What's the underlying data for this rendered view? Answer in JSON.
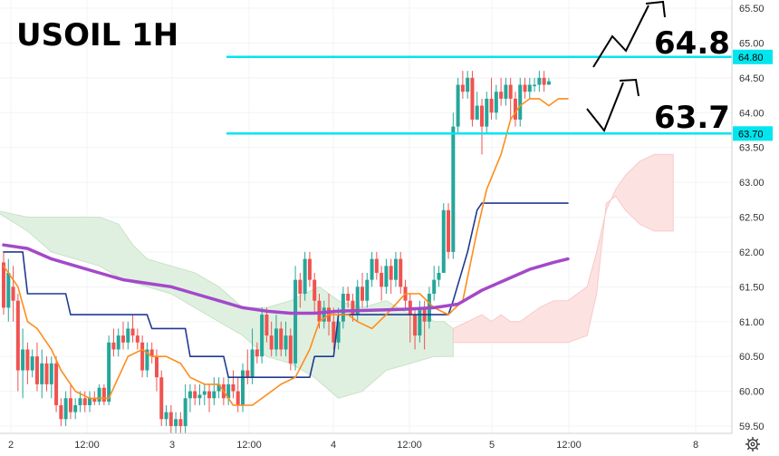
{
  "chart_data": {
    "type": "candlestick",
    "title": "USOIL 1H",
    "ylim": [
      59.4,
      65.6
    ],
    "y_ticks": [
      "65.50",
      "65.00",
      "64.50",
      "64.00",
      "63.50",
      "63.00",
      "62.50",
      "62.00",
      "61.50",
      "61.00",
      "60.50",
      "60.00",
      "59.50"
    ],
    "x_ticks": [
      "2",
      "12:00",
      "3",
      "12:00",
      "4",
      "12:00",
      "5",
      "12:00",
      "8"
    ],
    "colors": {
      "up": "#26a69a",
      "down": "#ef5350",
      "level_line": "#00e5ee",
      "tenkan": "#ff8c1a",
      "kijun": "#1f3a93",
      "ma": "#a349c9",
      "cloud_bull": "#e0f0e0",
      "cloud_bear": "#fde2e2"
    },
    "levels": [
      {
        "value": 64.8,
        "tag": "64.80",
        "label": "64.8"
      },
      {
        "value": 63.7,
        "tag": "63.70",
        "label": "63.7"
      }
    ],
    "candles": [
      [
        61.85,
        61.2,
        62.0,
        61.1
      ],
      [
        61.2,
        61.7,
        61.9,
        61.0
      ],
      [
        61.5,
        61.3,
        61.8,
        61.0
      ],
      [
        61.3,
        60.3,
        61.4,
        60.0
      ],
      [
        60.3,
        60.6,
        60.9,
        59.9
      ],
      [
        60.6,
        60.3,
        60.7,
        60.1
      ],
      [
        60.3,
        60.5,
        60.6,
        60.2
      ],
      [
        60.5,
        60.1,
        60.7,
        60.0
      ],
      [
        60.1,
        60.4,
        60.6,
        59.9
      ],
      [
        60.4,
        60.1,
        60.5,
        60.0
      ],
      [
        60.1,
        60.4,
        60.5,
        59.9
      ],
      [
        60.4,
        59.8,
        60.5,
        59.7
      ],
      [
        59.8,
        59.6,
        59.9,
        59.5
      ],
      [
        59.6,
        59.9,
        60.0,
        59.5
      ],
      [
        59.9,
        59.7,
        60.1,
        59.6
      ],
      [
        59.7,
        59.8,
        59.9,
        59.6
      ],
      [
        59.8,
        59.9,
        60.0,
        59.7
      ],
      [
        59.9,
        59.8,
        60.0,
        59.7
      ],
      [
        59.8,
        59.9,
        60.0,
        59.7
      ],
      [
        59.9,
        59.85,
        60.0,
        59.8
      ],
      [
        59.85,
        60.05,
        60.1,
        59.8
      ],
      [
        60.05,
        59.85,
        60.1,
        59.8
      ],
      [
        59.85,
        60.7,
        60.8,
        59.8
      ],
      [
        60.7,
        60.6,
        60.9,
        60.5
      ],
      [
        60.6,
        60.8,
        60.9,
        60.5
      ],
      [
        60.8,
        60.7,
        61.0,
        60.6
      ],
      [
        60.7,
        60.9,
        61.0,
        60.6
      ],
      [
        60.9,
        60.8,
        61.1,
        60.7
      ],
      [
        60.8,
        60.7,
        60.9,
        60.6
      ],
      [
        60.7,
        60.3,
        60.8,
        60.2
      ],
      [
        60.3,
        60.6,
        60.7,
        60.2
      ],
      [
        60.6,
        60.5,
        60.7,
        60.4
      ],
      [
        60.5,
        60.2,
        60.6,
        60.0
      ],
      [
        60.2,
        59.6,
        60.3,
        59.5
      ],
      [
        59.6,
        59.7,
        59.8,
        59.5
      ],
      [
        59.7,
        59.5,
        59.8,
        59.4
      ],
      [
        59.5,
        59.6,
        59.7,
        59.4
      ],
      [
        59.6,
        59.5,
        59.7,
        59.4
      ],
      [
        59.5,
        59.9,
        60.1,
        59.4
      ],
      [
        59.9,
        60.0,
        60.1,
        59.7
      ],
      [
        60.0,
        59.9,
        60.1,
        59.8
      ],
      [
        59.9,
        59.95,
        60.1,
        59.8
      ],
      [
        59.95,
        60.0,
        60.1,
        59.8
      ],
      [
        60.0,
        59.9,
        60.1,
        59.7
      ],
      [
        59.9,
        60.0,
        60.2,
        59.8
      ],
      [
        60.0,
        60.1,
        60.2,
        59.9
      ],
      [
        60.1,
        59.9,
        60.2,
        59.8
      ],
      [
        59.9,
        60.1,
        60.2,
        59.8
      ],
      [
        60.1,
        60.0,
        60.3,
        59.9
      ],
      [
        60.0,
        59.8,
        60.2,
        59.7
      ],
      [
        59.8,
        60.3,
        60.4,
        59.7
      ],
      [
        60.3,
        60.2,
        60.6,
        60.1
      ],
      [
        60.2,
        60.6,
        60.9,
        60.1
      ],
      [
        60.6,
        60.5,
        60.7,
        60.4
      ],
      [
        60.5,
        61.1,
        61.2,
        60.4
      ],
      [
        61.1,
        60.8,
        61.2,
        60.7
      ],
      [
        60.8,
        60.6,
        61.0,
        60.5
      ],
      [
        60.6,
        60.9,
        61.1,
        60.5
      ],
      [
        60.9,
        60.6,
        61.0,
        60.5
      ],
      [
        60.6,
        60.8,
        61.0,
        60.5
      ],
      [
        60.8,
        60.4,
        60.9,
        60.3
      ],
      [
        60.4,
        61.6,
        61.8,
        60.3
      ],
      [
        61.6,
        61.4,
        61.7,
        61.2
      ],
      [
        61.4,
        61.9,
        62.0,
        61.3
      ],
      [
        61.9,
        61.6,
        62.0,
        61.5
      ],
      [
        61.6,
        61.3,
        61.7,
        61.1
      ],
      [
        61.3,
        61.0,
        61.4,
        60.9
      ],
      [
        61.0,
        61.2,
        61.3,
        60.9
      ],
      [
        61.2,
        61.0,
        61.4,
        60.8
      ],
      [
        61.0,
        60.7,
        61.2,
        60.6
      ],
      [
        60.7,
        61.0,
        61.2,
        60.6
      ],
      [
        61.0,
        61.4,
        61.5,
        60.9
      ],
      [
        61.4,
        61.3,
        61.5,
        61.2
      ],
      [
        61.3,
        61.1,
        61.4,
        61.0
      ],
      [
        61.1,
        61.5,
        61.6,
        61.0
      ],
      [
        61.5,
        61.3,
        61.7,
        61.2
      ],
      [
        61.3,
        61.6,
        61.7,
        61.2
      ],
      [
        61.6,
        61.9,
        62.0,
        61.5
      ],
      [
        61.9,
        61.7,
        62.0,
        61.6
      ],
      [
        61.7,
        61.5,
        61.8,
        61.3
      ],
      [
        61.5,
        61.8,
        61.9,
        61.4
      ],
      [
        61.8,
        61.6,
        61.9,
        61.4
      ],
      [
        61.6,
        61.9,
        62.0,
        61.5
      ],
      [
        61.9,
        61.5,
        62.0,
        61.4
      ],
      [
        61.5,
        61.3,
        61.6,
        61.2
      ],
      [
        61.3,
        61.1,
        61.4,
        60.7
      ],
      [
        61.1,
        60.8,
        61.2,
        60.6
      ],
      [
        60.8,
        61.2,
        61.3,
        60.7
      ],
      [
        61.2,
        61.0,
        61.3,
        60.6
      ],
      [
        61.0,
        61.4,
        61.5,
        60.9
      ],
      [
        61.4,
        61.6,
        61.8,
        61.3
      ],
      [
        61.6,
        61.7,
        61.8,
        61.5
      ],
      [
        61.7,
        62.6,
        62.7,
        61.7
      ],
      [
        62.6,
        62.0,
        62.7,
        61.9
      ],
      [
        62.0,
        63.8,
        64.0,
        61.9
      ],
      [
        63.8,
        64.4,
        64.5,
        63.7
      ],
      [
        64.4,
        64.3,
        64.6,
        64.2
      ],
      [
        64.3,
        64.5,
        64.6,
        64.2
      ],
      [
        64.5,
        63.9,
        64.6,
        63.8
      ],
      [
        63.9,
        64.1,
        64.3,
        63.9
      ],
      [
        64.1,
        63.8,
        64.2,
        63.4
      ],
      [
        63.8,
        64.2,
        64.3,
        63.7
      ],
      [
        64.2,
        64.0,
        64.5,
        63.9
      ],
      [
        64.0,
        64.3,
        64.4,
        63.9
      ],
      [
        64.3,
        64.2,
        64.5,
        64.1
      ],
      [
        64.2,
        64.4,
        64.5,
        64.1
      ],
      [
        64.4,
        64.2,
        64.5,
        63.9
      ],
      [
        64.2,
        63.9,
        64.3,
        63.8
      ],
      [
        63.9,
        64.4,
        64.5,
        63.8
      ],
      [
        64.4,
        64.3,
        64.5,
        64.2
      ],
      [
        64.3,
        64.4,
        64.5,
        64.2
      ],
      [
        64.4,
        64.4,
        64.5,
        64.3
      ],
      [
        64.4,
        64.5,
        64.6,
        64.3
      ],
      [
        64.5,
        64.4,
        64.6,
        64.3
      ],
      [
        64.4,
        64.45,
        64.5,
        64.4
      ]
    ],
    "kijun_line": [
      [
        0,
        62.0
      ],
      [
        4,
        62.0
      ],
      [
        5,
        61.4
      ],
      [
        13,
        61.4
      ],
      [
        14,
        61.1
      ],
      [
        30,
        61.1
      ],
      [
        31,
        60.9
      ],
      [
        38,
        60.9
      ],
      [
        39,
        60.5
      ],
      [
        46,
        60.5
      ],
      [
        47,
        60.2
      ],
      [
        64,
        60.2
      ],
      [
        65,
        60.5
      ],
      [
        69,
        60.5
      ],
      [
        70,
        61.1
      ],
      [
        83,
        61.1
      ],
      [
        84,
        61.1
      ],
      [
        93,
        61.1
      ],
      [
        94,
        61.3
      ],
      [
        97,
        62.0
      ],
      [
        99,
        62.6
      ],
      [
        100,
        62.7
      ],
      [
        118,
        62.7
      ]
    ],
    "tenkan_line": [
      [
        0,
        61.8
      ],
      [
        3,
        61.5
      ],
      [
        5,
        61.0
      ],
      [
        7,
        60.9
      ],
      [
        10,
        60.6
      ],
      [
        12,
        60.3
      ],
      [
        15,
        60.0
      ],
      [
        18,
        59.9
      ],
      [
        22,
        59.9
      ],
      [
        26,
        60.5
      ],
      [
        29,
        60.6
      ],
      [
        31,
        60.5
      ],
      [
        34,
        60.5
      ],
      [
        37,
        60.4
      ],
      [
        39,
        60.2
      ],
      [
        42,
        60.1
      ],
      [
        45,
        60.1
      ],
      [
        48,
        59.8
      ],
      [
        52,
        59.8
      ],
      [
        56,
        60.0
      ],
      [
        58,
        60.1
      ],
      [
        61,
        60.2
      ],
      [
        64,
        60.6
      ],
      [
        66,
        61.0
      ],
      [
        68,
        61.1
      ],
      [
        72,
        61.1
      ],
      [
        74,
        61.0
      ],
      [
        77,
        60.9
      ],
      [
        80,
        61.1
      ],
      [
        84,
        61.4
      ],
      [
        87,
        61.4
      ],
      [
        90,
        61.2
      ],
      [
        93,
        61.1
      ],
      [
        96,
        61.3
      ],
      [
        99,
        62.3
      ],
      [
        101,
        62.9
      ],
      [
        104,
        63.4
      ],
      [
        106,
        63.9
      ],
      [
        108,
        64.1
      ],
      [
        110,
        64.2
      ],
      [
        112,
        64.2
      ],
      [
        114,
        64.1
      ],
      [
        116,
        64.2
      ],
      [
        118,
        64.2
      ]
    ],
    "ma_line": [
      [
        0,
        62.1
      ],
      [
        5,
        62.05
      ],
      [
        10,
        61.9
      ],
      [
        15,
        61.8
      ],
      [
        20,
        61.7
      ],
      [
        25,
        61.6
      ],
      [
        30,
        61.55
      ],
      [
        35,
        61.5
      ],
      [
        40,
        61.4
      ],
      [
        45,
        61.3
      ],
      [
        50,
        61.2
      ],
      [
        55,
        61.15
      ],
      [
        60,
        61.12
      ],
      [
        65,
        61.12
      ],
      [
        70,
        61.15
      ],
      [
        75,
        61.16
      ],
      [
        80,
        61.17
      ],
      [
        85,
        61.18
      ],
      [
        90,
        61.2
      ],
      [
        95,
        61.25
      ],
      [
        100,
        61.45
      ],
      [
        105,
        61.6
      ],
      [
        110,
        61.75
      ],
      [
        115,
        61.85
      ],
      [
        118,
        61.9
      ]
    ],
    "cloud_bull": [
      [
        -2,
        62.6
      ],
      [
        5,
        62.5
      ],
      [
        10,
        62.5
      ],
      [
        15,
        62.5
      ],
      [
        20,
        62.5
      ],
      [
        24,
        62.4
      ],
      [
        27,
        62.1
      ],
      [
        30,
        61.9
      ],
      [
        35,
        61.8
      ],
      [
        40,
        61.7
      ],
      [
        45,
        61.5
      ],
      [
        50,
        61.2
      ],
      [
        55,
        61.2
      ],
      [
        60,
        61.3
      ],
      [
        63,
        61.4
      ],
      [
        66,
        61.5
      ],
      [
        70,
        61.3
      ],
      [
        75,
        61.2
      ],
      [
        80,
        61.3
      ],
      [
        85,
        61.1
      ],
      [
        88,
        61.1
      ],
      [
        90,
        61.0
      ],
      [
        92,
        61.0
      ],
      [
        94,
        60.9
      ],
      [
        94,
        60.5
      ],
      [
        90,
        60.5
      ],
      [
        85,
        60.4
      ],
      [
        80,
        60.3
      ],
      [
        75,
        60.0
      ],
      [
        70,
        59.9
      ],
      [
        65,
        60.2
      ],
      [
        60,
        60.4
      ],
      [
        55,
        60.5
      ],
      [
        50,
        60.8
      ],
      [
        45,
        61.0
      ],
      [
        40,
        61.2
      ],
      [
        35,
        61.4
      ],
      [
        30,
        61.5
      ],
      [
        25,
        61.6
      ],
      [
        20,
        61.8
      ],
      [
        15,
        61.9
      ],
      [
        10,
        62.0
      ],
      [
        5,
        62.3
      ],
      [
        -2,
        62.6
      ]
    ],
    "cloud_bear": [
      [
        94,
        60.9
      ],
      [
        97,
        61.0
      ],
      [
        100,
        61.1
      ],
      [
        102,
        61.0
      ],
      [
        104,
        61.1
      ],
      [
        106,
        61.0
      ],
      [
        108,
        61.0
      ],
      [
        110,
        61.1
      ],
      [
        112,
        61.2
      ],
      [
        115,
        61.3
      ],
      [
        118,
        61.3
      ],
      [
        122,
        61.5
      ],
      [
        124,
        62.0
      ],
      [
        126,
        62.6
      ],
      [
        128,
        62.9
      ],
      [
        130,
        63.1
      ],
      [
        133,
        63.3
      ],
      [
        136,
        63.4
      ],
      [
        138,
        63.4
      ],
      [
        140,
        63.4
      ],
      [
        140,
        62.3
      ],
      [
        136,
        62.3
      ],
      [
        133,
        62.4
      ],
      [
        130,
        62.6
      ],
      [
        128,
        62.8
      ],
      [
        126,
        62.7
      ],
      [
        124,
        61.4
      ],
      [
        122,
        60.8
      ],
      [
        118,
        60.7
      ],
      [
        110,
        60.7
      ],
      [
        100,
        60.7
      ],
      [
        94,
        60.7
      ]
    ]
  }
}
